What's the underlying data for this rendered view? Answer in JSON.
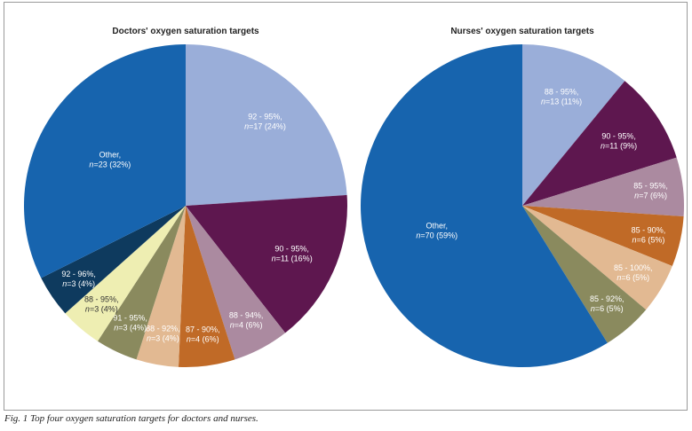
{
  "caption": "Fig. 1 Top four oxygen saturation targets for doctors and nurses.",
  "chart_data": [
    {
      "type": "pie",
      "title": "Doctors' oxygen saturation targets",
      "start": "12 o'clock",
      "direction": "clockwise",
      "slices": [
        {
          "label": "92 - 95%,",
          "n": 17,
          "pct": "24%",
          "color": "#9aaed9"
        },
        {
          "label": "90 - 95%,",
          "n": 11,
          "pct": "16%",
          "color": "#5e174f"
        },
        {
          "label": "88 - 94%,",
          "n": 4,
          "pct": "6%",
          "color": "#ab8aa0"
        },
        {
          "label": "87 - 90%,",
          "n": 4,
          "pct": "6%",
          "color": "#c06a27"
        },
        {
          "label": "88 - 92%,",
          "n": 3,
          "pct": "4%",
          "color": "#e2b992"
        },
        {
          "label": "91 - 95%,",
          "n": 3,
          "pct": "4%",
          "color": "#8a8a5e"
        },
        {
          "label": "88 - 95%,",
          "n": 3,
          "pct": "4%",
          "color": "#eeeeb2",
          "dark_text": true
        },
        {
          "label": "92 - 96%,",
          "n": 3,
          "pct": "4%",
          "color": "#0e3a5e"
        },
        {
          "label": "Other,",
          "n": 23,
          "pct": "32%",
          "color": "#1764ae"
        }
      ]
    },
    {
      "type": "pie",
      "title": "Nurses' oxygen saturation targets",
      "start": "12 o'clock",
      "direction": "clockwise",
      "slices": [
        {
          "label": "88 - 95%,",
          "n": 13,
          "pct": "11%",
          "color": "#9aaed9"
        },
        {
          "label": "90 - 95%,",
          "n": 11,
          "pct": "9%",
          "color": "#5e174f"
        },
        {
          "label": "85 - 95%,",
          "n": 7,
          "pct": "6%",
          "color": "#ab8aa0"
        },
        {
          "label": "85 - 90%,",
          "n": 6,
          "pct": "5%",
          "color": "#c06a27"
        },
        {
          "label": "85 - 100%,",
          "n": 6,
          "pct": "5%",
          "color": "#e2b992"
        },
        {
          "label": "85 - 92%,",
          "n": 6,
          "pct": "5%",
          "color": "#8a8a5e"
        },
        {
          "label": "Other,",
          "n": 70,
          "pct": "59%",
          "color": "#1764ae"
        }
      ]
    }
  ]
}
